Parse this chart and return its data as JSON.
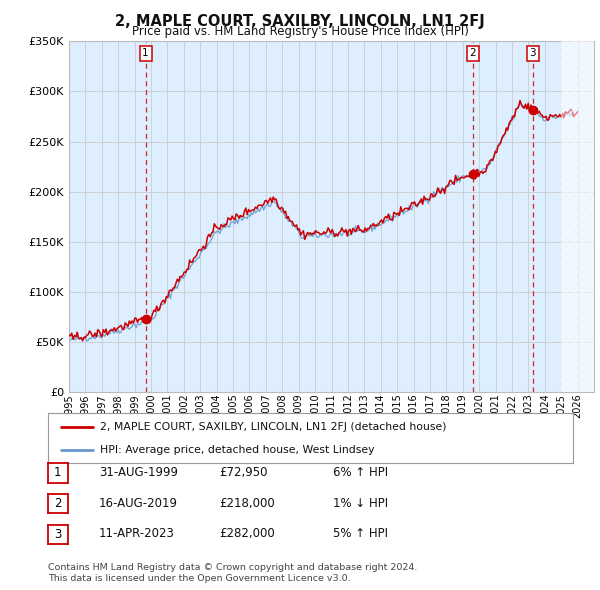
{
  "title": "2, MAPLE COURT, SAXILBY, LINCOLN, LN1 2FJ",
  "subtitle": "Price paid vs. HM Land Registry's House Price Index (HPI)",
  "ylim": [
    0,
    350000
  ],
  "yticks": [
    0,
    50000,
    100000,
    150000,
    200000,
    250000,
    300000,
    350000
  ],
  "ytick_labels": [
    "£0",
    "£50K",
    "£100K",
    "£150K",
    "£200K",
    "£250K",
    "£300K",
    "£350K"
  ],
  "x_start_year": 1995,
  "x_end_year": 2026,
  "sale_year_nums": [
    1999.67,
    2019.62,
    2023.28
  ],
  "sale_prices": [
    72950,
    218000,
    282000
  ],
  "sale_labels": [
    "1",
    "2",
    "3"
  ],
  "legend_line1": "2, MAPLE COURT, SAXILBY, LINCOLN, LN1 2FJ (detached house)",
  "legend_line2": "HPI: Average price, detached house, West Lindsey",
  "table_rows": [
    {
      "num": "1",
      "date": "31-AUG-1999",
      "price": "£72,950",
      "hpi": "6% ↑ HPI"
    },
    {
      "num": "2",
      "date": "16-AUG-2019",
      "price": "£218,000",
      "hpi": "1% ↓ HPI"
    },
    {
      "num": "3",
      "date": "11-APR-2023",
      "price": "£282,000",
      "hpi": "5% ↑ HPI"
    }
  ],
  "footnote1": "Contains HM Land Registry data © Crown copyright and database right 2024.",
  "footnote2": "This data is licensed under the Open Government Licence v3.0.",
  "red_color": "#cc0000",
  "blue_color": "#6699cc",
  "vline_color": "#cc0000",
  "grid_color": "#cccccc",
  "bg_color": "#ffffff",
  "plot_bg_color": "#ddeeff"
}
